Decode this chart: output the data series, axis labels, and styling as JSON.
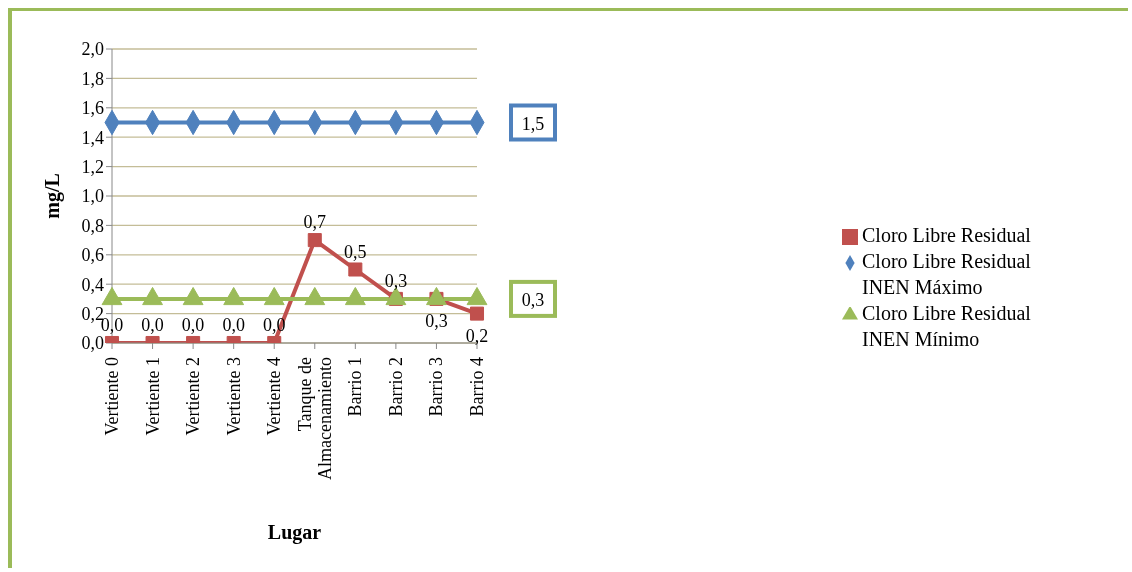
{
  "chart_data": {
    "type": "line",
    "xlabel": "Lugar",
    "ylabel": "mg/L",
    "categories": [
      "Vertiente 0",
      "Vertiente 1",
      "Vertiente 2",
      "Vertiente 3",
      "Vertiente 4",
      "Tanque de Almacenamiento",
      "Barrio 1",
      "Barrio 2",
      "Barrio 3",
      "Barrio 4"
    ],
    "series": [
      {
        "name": "Cloro Libre Residual INEN Máximo",
        "color": "#4f81bd",
        "marker": "diamond",
        "values": [
          1.5,
          1.5,
          1.5,
          1.5,
          1.5,
          1.5,
          1.5,
          1.5,
          1.5,
          1.5
        ]
      },
      {
        "name": "Cloro Libre Residual",
        "color": "#c0504d",
        "marker": "square",
        "values": [
          0,
          0,
          0,
          0,
          0,
          0.7,
          0.5,
          0.3,
          0.3,
          0.2
        ],
        "value_labels": [
          "0,0",
          "0,0",
          "0,0",
          "0,0",
          "0,0",
          "0,7",
          "0,5",
          "0,3",
          "0,3",
          "0,2"
        ]
      },
      {
        "name": "Cloro Libre Residual INEN Mínimo",
        "color": "#9bbb59",
        "marker": "triangle",
        "values": [
          0.3,
          0.3,
          0.3,
          0.3,
          0.3,
          0.3,
          0.3,
          0.3,
          0.3,
          0.3
        ]
      }
    ],
    "annotations": [
      {
        "text": "1,5",
        "x": "Barrio 4",
        "y": 1.5
      },
      {
        "text": "0,3",
        "x": "Barrio 4",
        "y": 0.3
      }
    ],
    "ylim": [
      0,
      2
    ],
    "yticks": [
      {
        "value": 0,
        "label": "0,0"
      },
      {
        "value": 0.2,
        "label": "0,2"
      },
      {
        "value": 0.4,
        "label": "0,4"
      },
      {
        "value": 0.6,
        "label": "0,6"
      },
      {
        "value": 0.8,
        "label": "0,8"
      },
      {
        "value": 1,
        "label": "1,0"
      },
      {
        "value": 1.2,
        "label": "1,2"
      },
      {
        "value": 1.4,
        "label": "1,4"
      },
      {
        "value": 1.6,
        "label": "1,6"
      },
      {
        "value": 1.8,
        "label": "1,8"
      },
      {
        "value": 2,
        "label": "2,0"
      }
    ],
    "grid": "y",
    "legend": "right",
    "line_style": "solid"
  }
}
